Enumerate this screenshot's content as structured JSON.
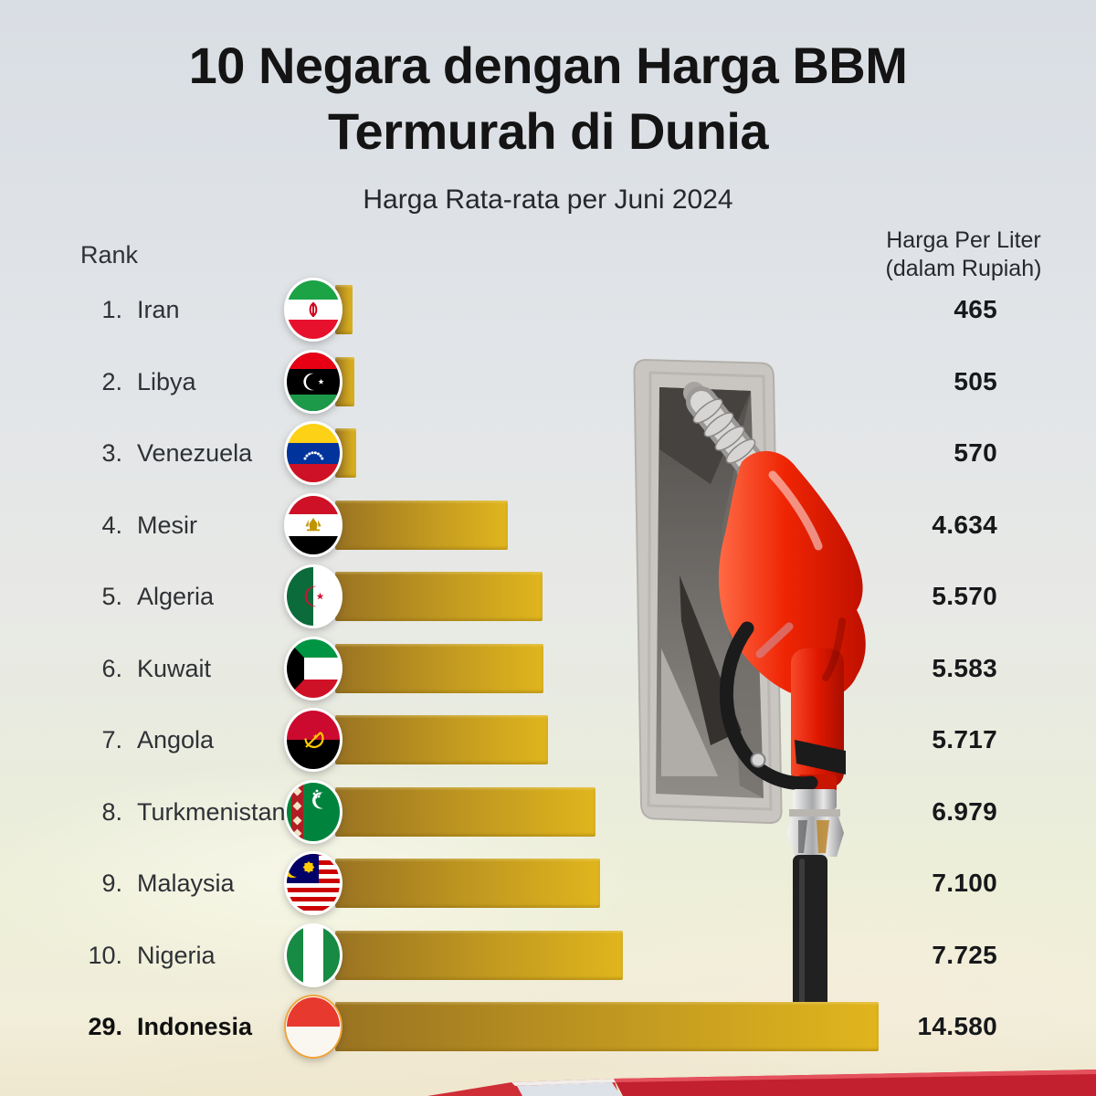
{
  "header": {
    "title_line1": "10 Negara dengan Harga BBM",
    "title_line2": "Termurah di Dunia",
    "subtitle": "Harga Rata-rata per Juni 2024"
  },
  "table": {
    "rank_header": "Rank",
    "value_header_line1": "Harga Per Liter",
    "value_header_line2": "(dalam Rupiah)",
    "rows": [
      {
        "rank": "1.",
        "country": "Iran",
        "flag": "iran",
        "value": 465,
        "value_label": "465",
        "highlight": false
      },
      {
        "rank": "2.",
        "country": "Libya",
        "flag": "libya",
        "value": 505,
        "value_label": "505",
        "highlight": false
      },
      {
        "rank": "3.",
        "country": "Venezuela",
        "flag": "venezuela",
        "value": 570,
        "value_label": "570",
        "highlight": false
      },
      {
        "rank": "4.",
        "country": "Mesir",
        "flag": "egypt",
        "value": 4634,
        "value_label": "4.634",
        "highlight": false
      },
      {
        "rank": "5.",
        "country": "Algeria",
        "flag": "algeria",
        "value": 5570,
        "value_label": "5.570",
        "highlight": false
      },
      {
        "rank": "6.",
        "country": "Kuwait",
        "flag": "kuwait",
        "value": 5583,
        "value_label": "5.583",
        "highlight": false
      },
      {
        "rank": "7.",
        "country": "Angola",
        "flag": "angola",
        "value": 5717,
        "value_label": "5.717",
        "highlight": false
      },
      {
        "rank": "8.",
        "country": "Turkmenistan",
        "flag": "turkmenistan",
        "value": 6979,
        "value_label": "6.979",
        "highlight": false
      },
      {
        "rank": "9.",
        "country": "Malaysia",
        "flag": "malaysia",
        "value": 7100,
        "value_label": "7.100",
        "highlight": false
      },
      {
        "rank": "10.",
        "country": "Nigeria",
        "flag": "nigeria",
        "value": 7725,
        "value_label": "7.725",
        "highlight": false
      },
      {
        "rank": "29.",
        "country": "Indonesia",
        "flag": "indonesia",
        "value": 14580,
        "value_label": "14.580",
        "highlight": true,
        "ring": "#f0a43c"
      }
    ]
  },
  "colors": {
    "bar_gradient_start": "#9a7322",
    "bar_gradient_mid": "#c29a20",
    "bar_gradient_end": "#e0b51d",
    "highlight_ring": "#f0a43c",
    "text_dark": "#141414"
  },
  "illustrations": {
    "nozzle": "red-fuel-nozzle-in-gray-pump-holster-with-hose",
    "pump_top": "red-gas-pump-machine-top"
  },
  "chart_data": {
    "type": "bar",
    "orientation": "horizontal",
    "title": "10 Negara dengan Harga BBM Termurah di Dunia",
    "subtitle": "Harga Rata-rata per Juni 2024",
    "value_axis_label": "Harga Per Liter (dalam Rupiah)",
    "categories": [
      "Iran",
      "Libya",
      "Venezuela",
      "Mesir",
      "Algeria",
      "Kuwait",
      "Angola",
      "Turkmenistan",
      "Malaysia",
      "Nigeria",
      "Indonesia"
    ],
    "ranks": [
      1,
      2,
      3,
      4,
      5,
      6,
      7,
      8,
      9,
      10,
      29
    ],
    "values": [
      465,
      505,
      570,
      4634,
      5570,
      5583,
      5717,
      6979,
      7100,
      7725,
      14580
    ],
    "value_labels": [
      "465",
      "505",
      "570",
      "4.634",
      "5.570",
      "5.583",
      "5.717",
      "6.979",
      "7.100",
      "7.725",
      "14.580"
    ],
    "xlim": [
      0,
      14580
    ],
    "grid": false,
    "legend": false,
    "bar_color_gradient": [
      "#9a7322",
      "#e0b51d"
    ],
    "highlighted_category": "Indonesia"
  }
}
